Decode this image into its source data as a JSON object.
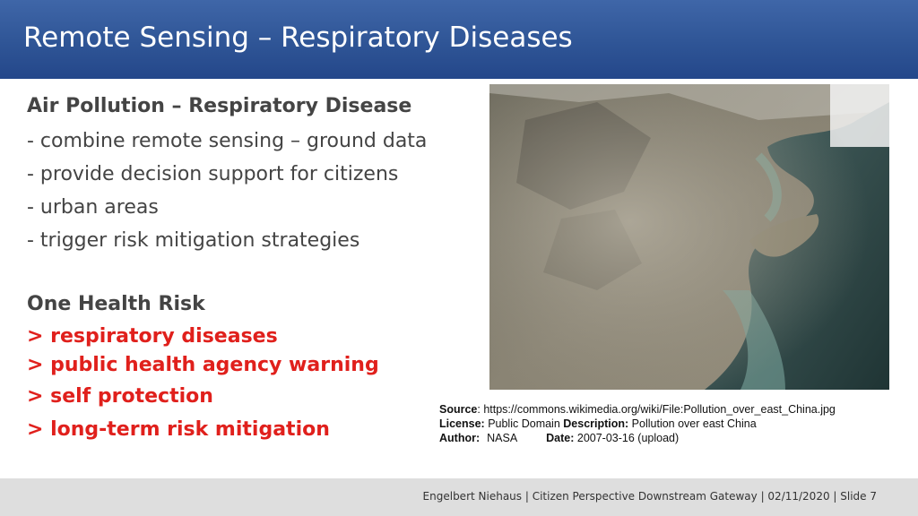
{
  "slide_title": "Remote Sensing – Respiratory Diseases",
  "section1": {
    "heading": "Air Pollution – Respiratory Disease",
    "bullets": [
      "- combine remote sensing – ground data",
      "- provide decision support for citizens",
      "- urban areas",
      "- trigger risk mitigation strategies"
    ]
  },
  "section2": {
    "heading": "One Health Risk",
    "items": [
      "> respiratory diseases",
      "> public health agency warning",
      "> self protection",
      "> long-term risk mitigation"
    ]
  },
  "image_caption": {
    "source_label": "Source",
    "source_value": ": https://commons.wikimedia.org/wiki/File:Pollution_over_east_China.jpg",
    "license_label": "License:",
    "license_value": " Public Domain ",
    "description_label": "Description:",
    "description_value": " Pollution over east China",
    "author_label": "Author:",
    "author_value": "NASA",
    "date_label": "Date:",
    "date_value": " 2007-03-16 (upload)"
  },
  "footer": "Engelbert Niehaus | Citizen Perspective Downstream Gateway  | 02/11/2020 | Slide  7",
  "colors": {
    "header_blue": "#2f5596",
    "accent_red": "#e0201c",
    "text_gray": "#444444",
    "footer_bg": "#dedede"
  }
}
